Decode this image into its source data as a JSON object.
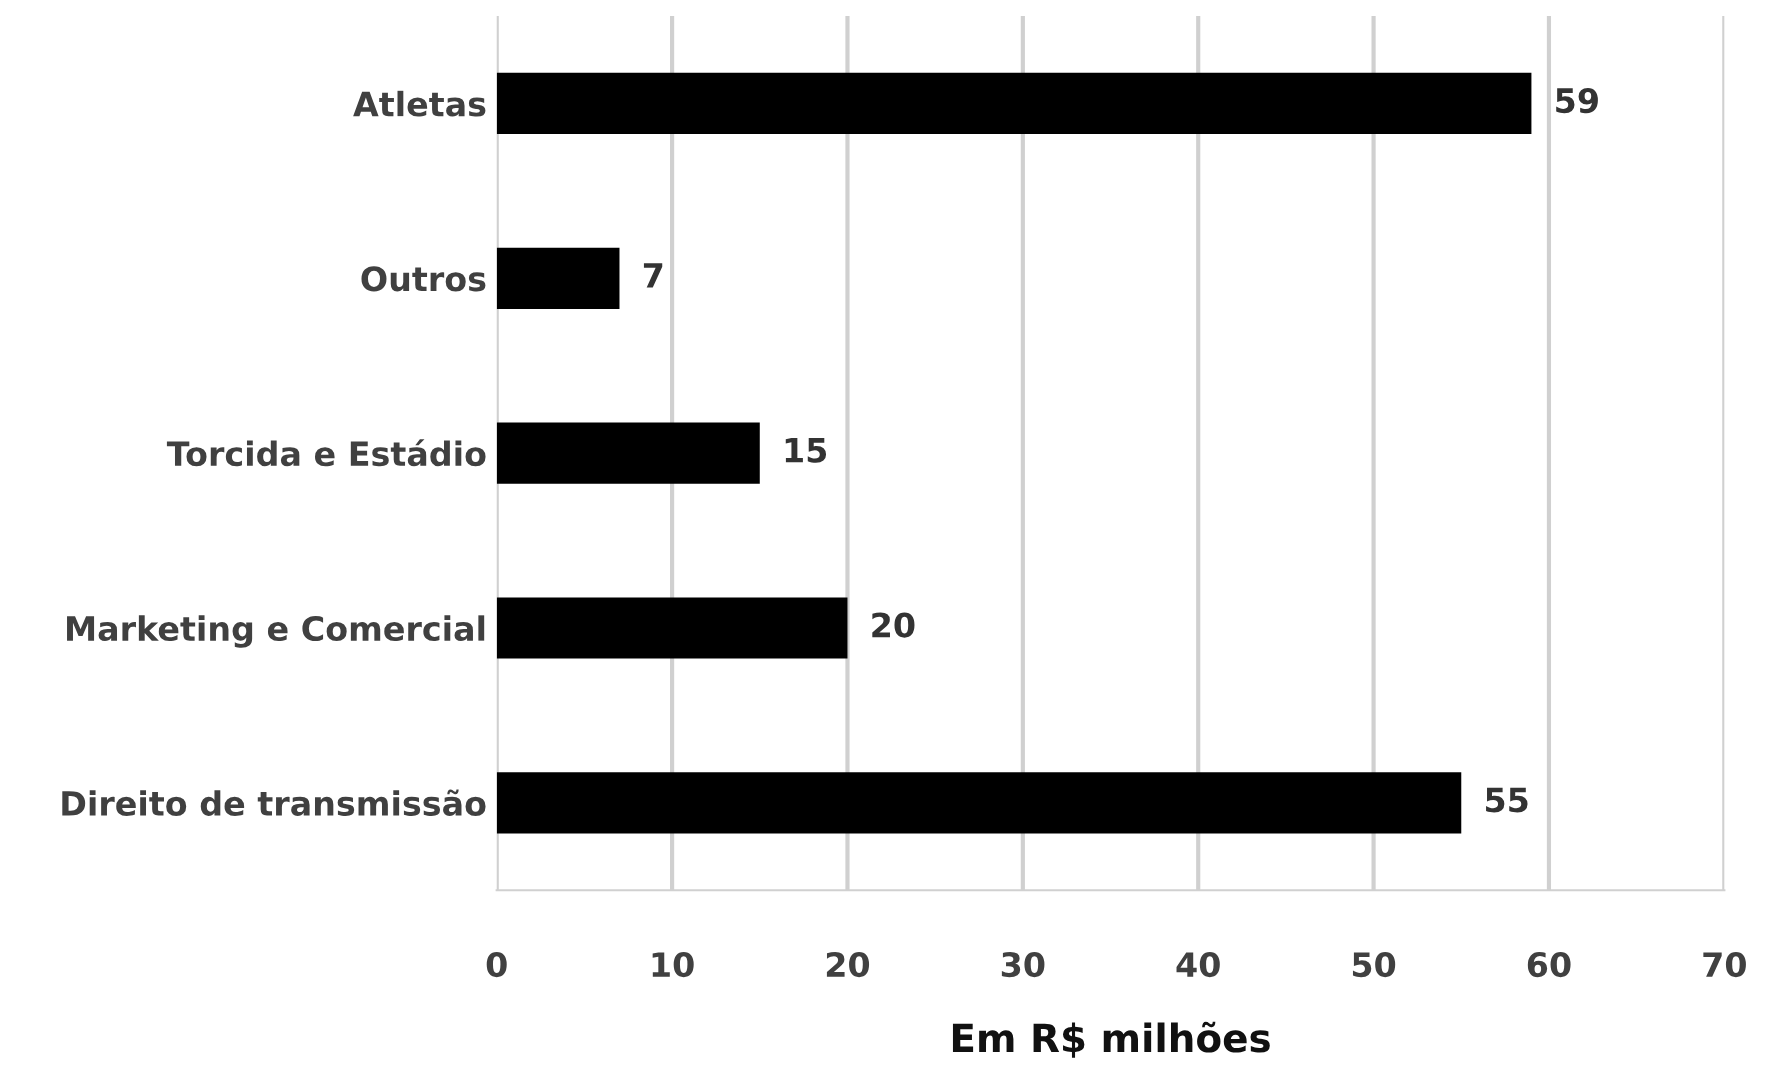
{
  "chart_data": {
    "type": "bar",
    "orientation": "horizontal",
    "xlabel": "Em R$ milhões",
    "categories": [
      "Atletas",
      "Outros",
      "Torcida e Estádio",
      "Marketing e Comercial",
      "Direito de transmissão"
    ],
    "values": [
      59,
      7,
      15,
      20,
      55
    ],
    "color": "#000000",
    "xlim": [
      0,
      70
    ],
    "xticks": [
      0,
      10,
      20,
      30,
      40,
      50,
      60,
      70
    ],
    "grid": "x",
    "data_labels": true
  }
}
